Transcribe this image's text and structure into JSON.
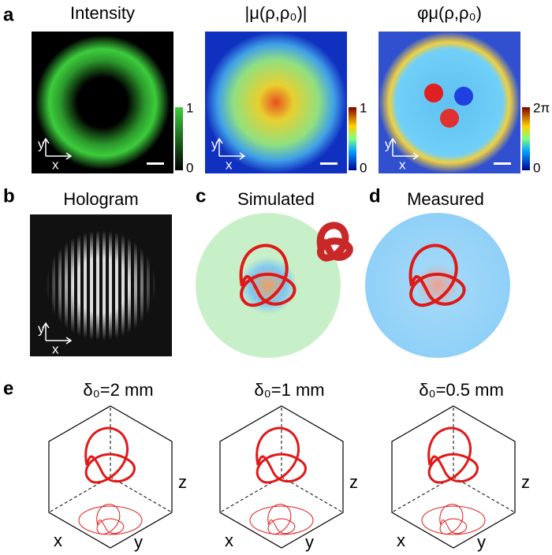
{
  "panel_a": {
    "label": "a",
    "images": [
      {
        "title": "Intensity",
        "colorbar": [
          "1",
          "0"
        ],
        "axes": [
          "y",
          "x"
        ]
      },
      {
        "title": "|μ(ρ,ρ₀)|",
        "colorbar": [
          "1",
          "0"
        ],
        "axes": [
          "y",
          "x"
        ]
      },
      {
        "title": "φμ(ρ,ρ₀)",
        "colorbar": [
          "2π",
          "0"
        ],
        "axes": [
          "y",
          "x"
        ]
      }
    ]
  },
  "panel_b": {
    "label": "b",
    "title": "Hologram",
    "axes": [
      "y",
      "x"
    ]
  },
  "panel_c": {
    "label": "c",
    "title": "Simulated"
  },
  "panel_d": {
    "label": "d",
    "title": "Measured"
  },
  "panel_e": {
    "label": "e",
    "plots": [
      {
        "title": "δ₀=2 mm",
        "axes": [
          "z",
          "x",
          "y"
        ]
      },
      {
        "title": "δ₀=1 mm",
        "axes": [
          "z",
          "x",
          "y"
        ]
      },
      {
        "title": "δ₀=0.5 mm",
        "axes": [
          "z",
          "x",
          "y"
        ]
      }
    ]
  }
}
